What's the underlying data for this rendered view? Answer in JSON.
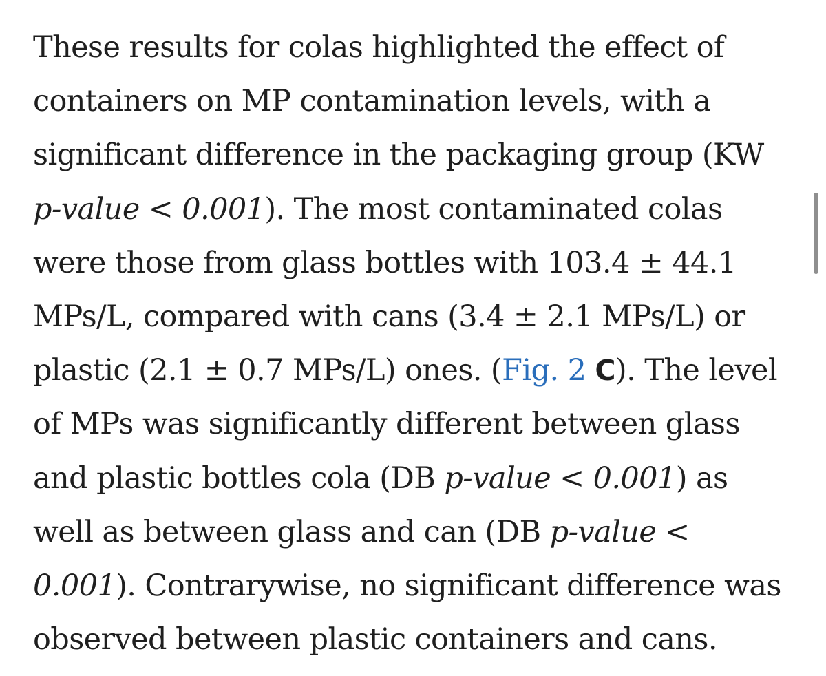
{
  "paragraph": {
    "lines": [
      "These results for colas highlighted the effect of",
      "containers on MP contamination levels, with a",
      "significant difference in the packaging group (KW",
      {
        "italic": "p-value < 0.001",
        "rest": "). The most contaminated colas"
      },
      "were those from glass bottles with 103.4 ± 44.1",
      "MPs/L, compared with cans (3.4 ± 2.1 MPs/L) or",
      {
        "before": "plastic (2.1 ± 0.7 MPs/L) ones. (",
        "fig_link": "Fig. 2",
        "panel": "C",
        "after": "). The level"
      },
      "of MPs was significantly different between glass",
      {
        "before": "and plastic bottles cola (DB ",
        "italic": "p-value < 0.001",
        "after": ") as"
      },
      {
        "before": "well as between glass and can (DB ",
        "italic": "p-value <"
      },
      {
        "italic": "0.001",
        "rest": "). Contrarywise, no significant difference was"
      },
      "observed between plastic containers and cans."
    ]
  },
  "colors": {
    "text": "#1f1f1f",
    "link": "#2a6ebb",
    "scrollbar": "#8f8f8f",
    "background": "#ffffff"
  }
}
